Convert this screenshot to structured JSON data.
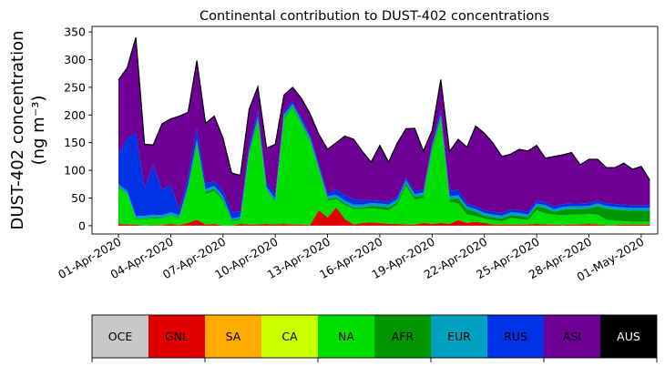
{
  "chart_data": {
    "type": "area",
    "stacked": true,
    "title": "Continental contribution to DUST-402 concentrations",
    "ylabel_line1": "DUST-402 concentration",
    "ylabel_line2": "(ng m⁻³)",
    "ylim": [
      -15,
      360
    ],
    "yticks": [
      0,
      50,
      100,
      150,
      200,
      250,
      300,
      350
    ],
    "x_start": "2020-04-01",
    "x_step_days": 0.5,
    "x_ticks": [
      "01-Apr-2020",
      "04-Apr-2020",
      "07-Apr-2020",
      "10-Apr-2020",
      "13-Apr-2020",
      "16-Apr-2020",
      "19-Apr-2020",
      "22-Apr-2020",
      "25-Apr-2020",
      "28-Apr-2020",
      "01-May-2020"
    ],
    "legend_placement": "bottom",
    "series": [
      {
        "name": "GNL",
        "color": "#e10000",
        "values": [
          3,
          2,
          2,
          0,
          1,
          1,
          3,
          1,
          5,
          11,
          2,
          3,
          0,
          0,
          3,
          2,
          2,
          3,
          2,
          3,
          2,
          2,
          1,
          28,
          15,
          33,
          12,
          2,
          5,
          6,
          5,
          3,
          3,
          2,
          2,
          5,
          3,
          5,
          3,
          10,
          5,
          7,
          5,
          2,
          2,
          2,
          2,
          2,
          3,
          2,
          2,
          1,
          2,
          2,
          3,
          2,
          1,
          1,
          2,
          2,
          2,
          2
        ]
      },
      {
        "name": "SA",
        "color": "#ffab00",
        "values": [
          0,
          0,
          0,
          0,
          0,
          0,
          0,
          0,
          0,
          0,
          0,
          0,
          0,
          0,
          0,
          0,
          0,
          0,
          0,
          0,
          0,
          0,
          0,
          0,
          0,
          0,
          0,
          0,
          0,
          0,
          0,
          0,
          0,
          0,
          0,
          0,
          0,
          0,
          0,
          0,
          0,
          0,
          0,
          0,
          0,
          0,
          0,
          0,
          0,
          0,
          0,
          0,
          0,
          0,
          0,
          0,
          0,
          0,
          0,
          0,
          0,
          0
        ]
      },
      {
        "name": "CA",
        "color": "#cbff00",
        "values": [
          0,
          0,
          0,
          0,
          0,
          0,
          0,
          0,
          0,
          0,
          0,
          0,
          0,
          0,
          0,
          0,
          0,
          0,
          0,
          0,
          0,
          0,
          0,
          0,
          0,
          0,
          0,
          0,
          0,
          0,
          0,
          0,
          0,
          0,
          0,
          0,
          0,
          0,
          0,
          0,
          0,
          0,
          0,
          0,
          0,
          0,
          0,
          0,
          0,
          0,
          0,
          0,
          0,
          0,
          0,
          0,
          0,
          0,
          0,
          0,
          0,
          0
        ]
      },
      {
        "name": "NA",
        "color": "#00e000",
        "values": [
          65,
          55,
          10,
          12,
          12,
          12,
          15,
          12,
          60,
          135,
          55,
          60,
          45,
          8,
          8,
          125,
          185,
          60,
          40,
          190,
          210,
          180,
          150,
          70,
          30,
          15,
          25,
          28,
          25,
          25,
          25,
          25,
          35,
          70,
          45,
          45,
          130,
          185,
          40,
          30,
          15,
          10,
          8,
          8,
          6,
          12,
          10,
          8,
          25,
          20,
          18,
          18,
          18,
          18,
          18,
          18,
          10,
          8,
          6,
          5,
          5,
          5
        ]
      },
      {
        "name": "AFR",
        "color": "#009600",
        "values": [
          2,
          1,
          1,
          1,
          2,
          1,
          1,
          1,
          4,
          5,
          4,
          4,
          4,
          2,
          2,
          4,
          5,
          2,
          2,
          3,
          3,
          3,
          3,
          3,
          3,
          3,
          3,
          3,
          3,
          5,
          5,
          5,
          5,
          5,
          5,
          5,
          5,
          5,
          5,
          10,
          10,
          8,
          5,
          5,
          5,
          5,
          6,
          5,
          7,
          10,
          5,
          10,
          10,
          10,
          10,
          15,
          20,
          20,
          20,
          20,
          20,
          20
        ]
      },
      {
        "name": "EUR",
        "color": "#00a0c0",
        "values": [
          5,
          5,
          5,
          5,
          5,
          5,
          5,
          5,
          5,
          5,
          5,
          5,
          5,
          3,
          3,
          5,
          5,
          5,
          5,
          5,
          5,
          5,
          5,
          5,
          5,
          5,
          5,
          5,
          5,
          5,
          5,
          5,
          5,
          5,
          5,
          5,
          5,
          5,
          5,
          5,
          5,
          5,
          5,
          5,
          5,
          5,
          5,
          5,
          5,
          5,
          5,
          5,
          5,
          5,
          5,
          5,
          5,
          5,
          5,
          5,
          5,
          5
        ]
      },
      {
        "name": "RUS",
        "color": "#0032e6",
        "values": [
          55,
          95,
          150,
          50,
          90,
          45,
          50,
          10,
          15,
          20,
          10,
          8,
          10,
          12,
          10,
          10,
          10,
          8,
          8,
          5,
          5,
          5,
          5,
          5,
          5,
          10,
          10,
          10,
          8,
          5,
          5,
          5,
          5,
          5,
          5,
          5,
          5,
          10,
          10,
          10,
          5,
          5,
          5,
          5,
          5,
          5,
          5,
          5,
          5,
          5,
          5,
          5,
          5,
          5,
          5,
          5,
          5,
          5,
          5,
          5,
          5,
          5
        ]
      },
      {
        "name": "ASI",
        "color": "#6e0096",
        "values": [
          133,
          127,
          172,
          79,
          36,
          120,
          119,
          169,
          116,
          122,
          109,
          118,
          94,
          70,
          65,
          64,
          44,
          62,
          90,
          30,
          25,
          35,
          38,
          54,
          80,
          84,
          107,
          108,
          88,
          69,
          100,
          72,
          96,
          88,
          114,
          70,
          24,
          54,
          71,
          91,
          102,
          145,
          139,
          124,
          102,
          100,
          110,
          110,
          100,
          80,
          90,
          89,
          92,
          70,
          79,
          75,
          64,
          66,
          75,
          65,
          70,
          45
        ]
      },
      {
        "name": "AUS",
        "color": "#000000",
        "values": [
          0,
          0,
          0,
          0,
          0,
          0,
          0,
          0,
          0,
          0,
          0,
          0,
          0,
          0,
          0,
          0,
          0,
          0,
          0,
          0,
          0,
          0,
          0,
          0,
          0,
          0,
          0,
          0,
          0,
          0,
          0,
          0,
          0,
          0,
          0,
          0,
          0,
          0,
          0,
          0,
          0,
          0,
          0,
          0,
          0,
          0,
          0,
          0,
          0,
          0,
          0,
          0,
          0,
          0,
          0,
          0,
          0,
          0,
          0,
          0,
          0,
          0
        ]
      }
    ],
    "legend": [
      {
        "label": "OCE",
        "color": "#c8c8c8",
        "text_color": "#000000"
      },
      {
        "label": "GNL",
        "color": "#e10000",
        "text_color": "#000000"
      },
      {
        "label": "SA",
        "color": "#ffab00",
        "text_color": "#000000"
      },
      {
        "label": "CA",
        "color": "#cbff00",
        "text_color": "#000000"
      },
      {
        "label": "NA",
        "color": "#00e000",
        "text_color": "#000000"
      },
      {
        "label": "AFR",
        "color": "#009600",
        "text_color": "#000000"
      },
      {
        "label": "EUR",
        "color": "#00a0c0",
        "text_color": "#000000"
      },
      {
        "label": "RUS",
        "color": "#0032e6",
        "text_color": "#000000"
      },
      {
        "label": "ASI",
        "color": "#6e0096",
        "text_color": "#000000"
      },
      {
        "label": "AUS",
        "color": "#000000",
        "text_color": "#ffffff"
      }
    ]
  }
}
